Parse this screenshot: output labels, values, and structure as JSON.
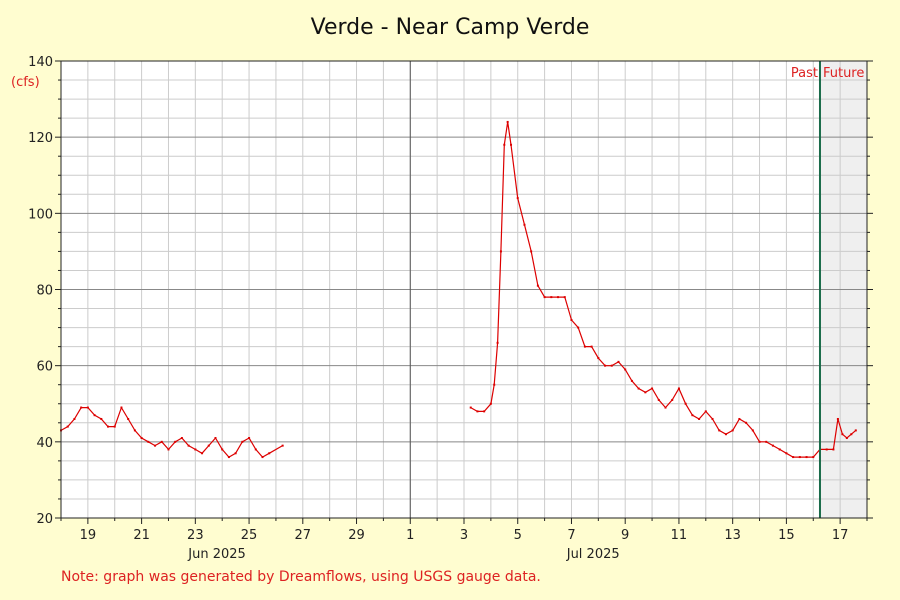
{
  "chart_data": {
    "type": "line",
    "title": "Verde - Near Camp Verde",
    "y_unit": "(cfs)",
    "ylim": [
      20,
      140
    ],
    "y_ticks": [
      20,
      40,
      60,
      80,
      100,
      120,
      140
    ],
    "x_start": "2025-06-18",
    "x_end": "2025-07-18",
    "x_ticks": [
      {
        "date": "2025-06-19",
        "label": "19"
      },
      {
        "date": "2025-06-21",
        "label": "21"
      },
      {
        "date": "2025-06-23",
        "label": "23"
      },
      {
        "date": "2025-06-25",
        "label": "25"
      },
      {
        "date": "2025-06-27",
        "label": "27"
      },
      {
        "date": "2025-06-29",
        "label": "29"
      },
      {
        "date": "2025-07-01",
        "label": "1"
      },
      {
        "date": "2025-07-03",
        "label": "3"
      },
      {
        "date": "2025-07-05",
        "label": "5"
      },
      {
        "date": "2025-07-07",
        "label": "7"
      },
      {
        "date": "2025-07-09",
        "label": "9"
      },
      {
        "date": "2025-07-11",
        "label": "11"
      },
      {
        "date": "2025-07-13",
        "label": "13"
      },
      {
        "date": "2025-07-15",
        "label": "15"
      },
      {
        "date": "2025-07-17",
        "label": "17"
      }
    ],
    "month_labels": [
      {
        "date": "2025-06-25",
        "label": "Jun 2025"
      },
      {
        "date": "2025-07-09",
        "label": "Jul 2025"
      }
    ],
    "month_boundary": "2025-07-01",
    "now": "2025-07-16T06:00",
    "past_label": "Past",
    "future_label": "Future",
    "grid": true,
    "series": [
      {
        "color": "#dd0000",
        "segments": [
          [
            [
              "2025-06-18T00:00",
              43
            ],
            [
              "2025-06-18T06:00",
              44
            ],
            [
              "2025-06-18T12:00",
              46
            ],
            [
              "2025-06-18T18:00",
              49
            ],
            [
              "2025-06-19T00:00",
              49
            ],
            [
              "2025-06-19T06:00",
              47
            ],
            [
              "2025-06-19T12:00",
              46
            ],
            [
              "2025-06-19T18:00",
              44
            ],
            [
              "2025-06-20T00:00",
              44
            ],
            [
              "2025-06-20T06:00",
              49
            ],
            [
              "2025-06-20T12:00",
              46
            ],
            [
              "2025-06-20T18:00",
              43
            ],
            [
              "2025-06-21T00:00",
              41
            ],
            [
              "2025-06-21T06:00",
              40
            ],
            [
              "2025-06-21T12:00",
              39
            ],
            [
              "2025-06-21T18:00",
              40
            ],
            [
              "2025-06-22T00:00",
              38
            ],
            [
              "2025-06-22T06:00",
              40
            ],
            [
              "2025-06-22T12:00",
              41
            ],
            [
              "2025-06-22T18:00",
              39
            ],
            [
              "2025-06-23T00:00",
              38
            ],
            [
              "2025-06-23T06:00",
              37
            ],
            [
              "2025-06-23T12:00",
              39
            ],
            [
              "2025-06-23T18:00",
              41
            ],
            [
              "2025-06-24T00:00",
              38
            ],
            [
              "2025-06-24T06:00",
              36
            ],
            [
              "2025-06-24T12:00",
              37
            ],
            [
              "2025-06-24T18:00",
              40
            ],
            [
              "2025-06-25T00:00",
              41
            ],
            [
              "2025-06-25T06:00",
              38
            ],
            [
              "2025-06-25T12:00",
              36
            ],
            [
              "2025-06-25T18:00",
              37
            ],
            [
              "2025-06-26T06:00",
              39
            ]
          ],
          [
            [
              "2025-07-03T06:00",
              49
            ],
            [
              "2025-07-03T12:00",
              48
            ],
            [
              "2025-07-03T18:00",
              48
            ],
            [
              "2025-07-04T00:00",
              50
            ],
            [
              "2025-07-04T03:00",
              55
            ],
            [
              "2025-07-04T06:00",
              66
            ],
            [
              "2025-07-04T09:00",
              90
            ],
            [
              "2025-07-04T12:00",
              118
            ],
            [
              "2025-07-04T15:00",
              124
            ],
            [
              "2025-07-04T18:00",
              118
            ],
            [
              "2025-07-05T00:00",
              104
            ],
            [
              "2025-07-05T06:00",
              97
            ],
            [
              "2025-07-05T12:00",
              90
            ],
            [
              "2025-07-05T18:00",
              81
            ],
            [
              "2025-07-06T00:00",
              78
            ],
            [
              "2025-07-06T06:00",
              78
            ],
            [
              "2025-07-06T12:00",
              78
            ],
            [
              "2025-07-06T18:00",
              78
            ],
            [
              "2025-07-07T00:00",
              72
            ],
            [
              "2025-07-07T06:00",
              70
            ],
            [
              "2025-07-07T12:00",
              65
            ],
            [
              "2025-07-07T18:00",
              65
            ],
            [
              "2025-07-08T00:00",
              62
            ],
            [
              "2025-07-08T06:00",
              60
            ],
            [
              "2025-07-08T12:00",
              60
            ],
            [
              "2025-07-08T18:00",
              61
            ],
            [
              "2025-07-09T00:00",
              59
            ],
            [
              "2025-07-09T06:00",
              56
            ],
            [
              "2025-07-09T12:00",
              54
            ],
            [
              "2025-07-09T18:00",
              53
            ],
            [
              "2025-07-10T00:00",
              54
            ],
            [
              "2025-07-10T06:00",
              51
            ],
            [
              "2025-07-10T12:00",
              49
            ],
            [
              "2025-07-10T18:00",
              51
            ],
            [
              "2025-07-11T00:00",
              54
            ],
            [
              "2025-07-11T06:00",
              50
            ],
            [
              "2025-07-11T12:00",
              47
            ],
            [
              "2025-07-11T18:00",
              46
            ],
            [
              "2025-07-12T00:00",
              48
            ],
            [
              "2025-07-12T06:00",
              46
            ],
            [
              "2025-07-12T12:00",
              43
            ],
            [
              "2025-07-12T18:00",
              42
            ],
            [
              "2025-07-13T00:00",
              43
            ],
            [
              "2025-07-13T06:00",
              46
            ],
            [
              "2025-07-13T12:00",
              45
            ],
            [
              "2025-07-13T18:00",
              43
            ],
            [
              "2025-07-14T00:00",
              40
            ],
            [
              "2025-07-14T06:00",
              40
            ],
            [
              "2025-07-14T12:00",
              39
            ],
            [
              "2025-07-14T18:00",
              38
            ],
            [
              "2025-07-15T00:00",
              37
            ],
            [
              "2025-07-15T06:00",
              36
            ],
            [
              "2025-07-15T12:00",
              36
            ],
            [
              "2025-07-15T18:00",
              36
            ],
            [
              "2025-07-16T00:00",
              36
            ],
            [
              "2025-07-16T06:00",
              38
            ],
            [
              "2025-07-16T12:00",
              38
            ],
            [
              "2025-07-16T18:00",
              38
            ],
            [
              "2025-07-16T22:00",
              46
            ],
            [
              "2025-07-17T02:00",
              42
            ],
            [
              "2025-07-17T06:00",
              41
            ],
            [
              "2025-07-17T10:00",
              42
            ],
            [
              "2025-07-17T14:00",
              43
            ]
          ]
        ]
      }
    ]
  },
  "footer_note": "Note: graph was generated by Dreamflows, using USGS gauge data."
}
